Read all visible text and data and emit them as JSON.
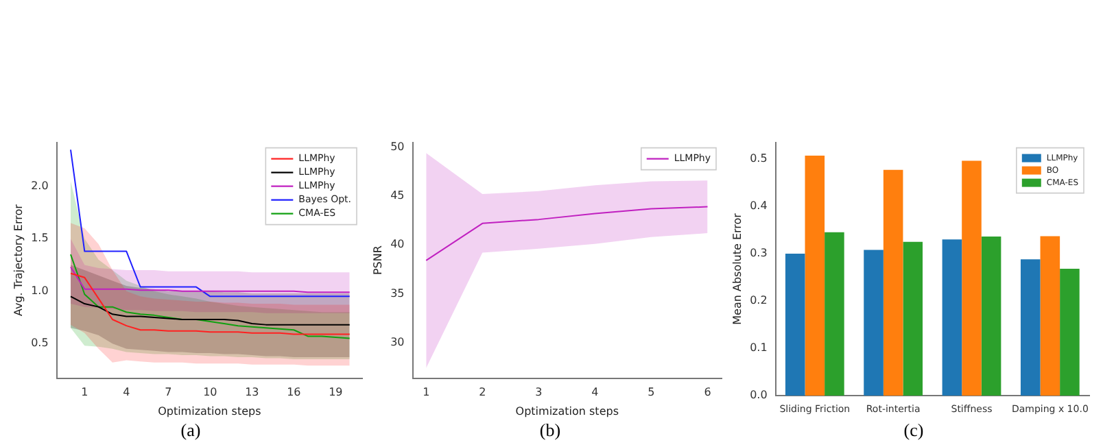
{
  "chart_data": [
    {
      "type": "line",
      "xlabel": "Optimization steps",
      "ylabel": "Avg. Trajectory Error",
      "x": [
        0,
        1,
        2,
        3,
        4,
        5,
        6,
        7,
        8,
        9,
        10,
        11,
        12,
        13,
        14,
        15,
        16,
        17,
        18,
        19,
        20
      ],
      "xlim": [
        -1.0,
        20.9
      ],
      "xticks": [
        1,
        4,
        7,
        10,
        13,
        16,
        19
      ],
      "ylim": [
        0.17,
        2.42
      ],
      "yticks": [
        {
          "value": 0.5,
          "label": "0.5"
        },
        {
          "value": 1.0,
          "label": "1.0"
        },
        {
          "value": 1.5,
          "label": "1.5"
        },
        {
          "value": 2.0,
          "label": "2.0"
        }
      ],
      "legend": "top right",
      "grid": false,
      "annotations": [
        "(a)"
      ],
      "series": [
        {
          "name": "LLMPhy",
          "color": "#ff2020",
          "values": [
            1.17,
            1.13,
            0.93,
            0.73,
            0.67,
            0.63,
            0.63,
            0.62,
            0.62,
            0.62,
            0.61,
            0.61,
            0.61,
            0.6,
            0.6,
            0.6,
            0.59,
            0.59,
            0.59,
            0.59,
            0.59
          ],
          "lower": [
            0.68,
            0.6,
            0.45,
            0.32,
            0.34,
            0.33,
            0.32,
            0.32,
            0.32,
            0.31,
            0.31,
            0.31,
            0.31,
            0.3,
            0.3,
            0.3,
            0.3,
            0.29,
            0.29,
            0.29,
            0.29
          ],
          "upper": [
            1.65,
            1.6,
            1.45,
            1.2,
            1.0,
            0.95,
            0.93,
            0.92,
            0.91,
            0.9,
            0.9,
            0.89,
            0.89,
            0.88,
            0.88,
            0.88,
            0.87,
            0.87,
            0.87,
            0.87,
            0.87
          ]
        },
        {
          "name": "LLMPhy",
          "color": "#000000",
          "values": [
            0.95,
            0.88,
            0.85,
            0.78,
            0.76,
            0.76,
            0.75,
            0.74,
            0.73,
            0.73,
            0.73,
            0.73,
            0.72,
            0.69,
            0.68,
            0.68,
            0.68,
            0.68,
            0.68,
            0.68,
            0.68
          ],
          "lower": [
            0.65,
            0.62,
            0.58,
            0.5,
            0.45,
            0.44,
            0.43,
            0.42,
            0.42,
            0.41,
            0.41,
            0.4,
            0.4,
            0.39,
            0.38,
            0.38,
            0.37,
            0.37,
            0.37,
            0.37,
            0.37
          ],
          "upper": [
            1.25,
            1.2,
            1.15,
            1.1,
            1.05,
            1.03,
            1.02,
            1.0,
            1.0,
            1.0,
            1.0,
            0.99,
            0.99,
            0.98,
            0.98,
            0.98,
            0.98,
            0.98,
            0.98,
            0.98,
            0.98
          ]
        },
        {
          "name": "LLMPhy",
          "color": "#c020c0",
          "values": [
            1.23,
            1.02,
            1.02,
            1.02,
            1.02,
            1.01,
            1.01,
            1.01,
            1.0,
            1.0,
            1.0,
            1.0,
            1.0,
            1.0,
            1.0,
            1.0,
            1.0,
            0.99,
            0.99,
            0.99,
            0.99
          ],
          "lower": [
            0.88,
            0.85,
            0.84,
            0.83,
            0.82,
            0.82,
            0.81,
            0.81,
            0.81,
            0.8,
            0.8,
            0.8,
            0.8,
            0.8,
            0.79,
            0.79,
            0.79,
            0.79,
            0.79,
            0.79,
            0.79
          ],
          "upper": [
            1.5,
            1.25,
            1.22,
            1.21,
            1.2,
            1.2,
            1.2,
            1.19,
            1.19,
            1.19,
            1.19,
            1.19,
            1.19,
            1.18,
            1.18,
            1.18,
            1.18,
            1.18,
            1.18,
            1.18,
            1.18
          ]
        },
        {
          "name": "Bayes Opt.",
          "color": "#2020ff",
          "values": [
            2.35,
            1.38,
            1.38,
            1.38,
            1.38,
            1.04,
            1.04,
            1.04,
            1.04,
            1.04,
            0.95,
            0.95,
            0.95,
            0.95,
            0.95,
            0.95,
            0.95,
            0.95,
            0.95,
            0.95,
            0.95
          ]
        },
        {
          "name": "CMA-ES",
          "color": "#10a010",
          "values": [
            1.35,
            0.97,
            0.85,
            0.85,
            0.8,
            0.78,
            0.77,
            0.75,
            0.73,
            0.73,
            0.71,
            0.69,
            0.67,
            0.66,
            0.65,
            0.64,
            0.63,
            0.57,
            0.57,
            0.56,
            0.55
          ],
          "lower": [
            0.65,
            0.48,
            0.47,
            0.45,
            0.42,
            0.41,
            0.4,
            0.4,
            0.39,
            0.39,
            0.38,
            0.38,
            0.37,
            0.37,
            0.36,
            0.36,
            0.35,
            0.35,
            0.35,
            0.35,
            0.35
          ],
          "upper": [
            2.05,
            1.5,
            1.3,
            1.2,
            1.1,
            1.05,
            1.0,
            0.97,
            0.95,
            0.93,
            0.9,
            0.88,
            0.86,
            0.85,
            0.84,
            0.83,
            0.82,
            0.81,
            0.8,
            0.8,
            0.8
          ]
        }
      ]
    },
    {
      "type": "line",
      "xlabel": "Optimization steps",
      "ylabel": "PSNR",
      "x": [
        1,
        2,
        3,
        4,
        5,
        6
      ],
      "xlim": [
        0.76,
        6.25
      ],
      "xticks": [
        1,
        2,
        3,
        4,
        5,
        6
      ],
      "ylim": [
        26.35,
        50.5
      ],
      "yticks": [
        30,
        35,
        40,
        45,
        50
      ],
      "legend": "top right",
      "grid": false,
      "annotations": [
        "(b)"
      ],
      "series": [
        {
          "name": "LLMPhy",
          "color": "#c020c0",
          "values": [
            38.4,
            42.2,
            42.6,
            43.2,
            43.7,
            43.9
          ],
          "lower": [
            27.4,
            39.2,
            39.6,
            40.1,
            40.8,
            41.2
          ],
          "upper": [
            49.4,
            45.2,
            45.5,
            46.1,
            46.5,
            46.6
          ]
        }
      ]
    },
    {
      "type": "bar",
      "ylabel": "Mean Absolute Error",
      "categories": [
        "Sliding Friction",
        "Rot-intertia",
        "Stiffness",
        "Damping x 10.0"
      ],
      "ylim": [
        0,
        0.535
      ],
      "yticks": [
        {
          "value": 0,
          "label": "0.0"
        },
        {
          "value": 0.1,
          "label": "0.1"
        },
        {
          "value": 0.2,
          "label": "0.2"
        },
        {
          "value": 0.3,
          "label": "0.3"
        },
        {
          "value": 0.4,
          "label": "0.4"
        },
        {
          "value": 0.5,
          "label": "0.5"
        }
      ],
      "legend": "top right",
      "grid": false,
      "annotations": [
        "(c)"
      ],
      "series": [
        {
          "name": "LLMPhy",
          "color": "#1f77b4",
          "values": [
            0.3,
            0.308,
            0.33,
            0.288
          ]
        },
        {
          "name": "BO",
          "color": "#ff7f0e",
          "values": [
            0.507,
            0.477,
            0.496,
            0.337
          ]
        },
        {
          "name": "CMA-ES",
          "color": "#2ca02c",
          "values": [
            0.345,
            0.325,
            0.336,
            0.268
          ]
        }
      ]
    }
  ]
}
